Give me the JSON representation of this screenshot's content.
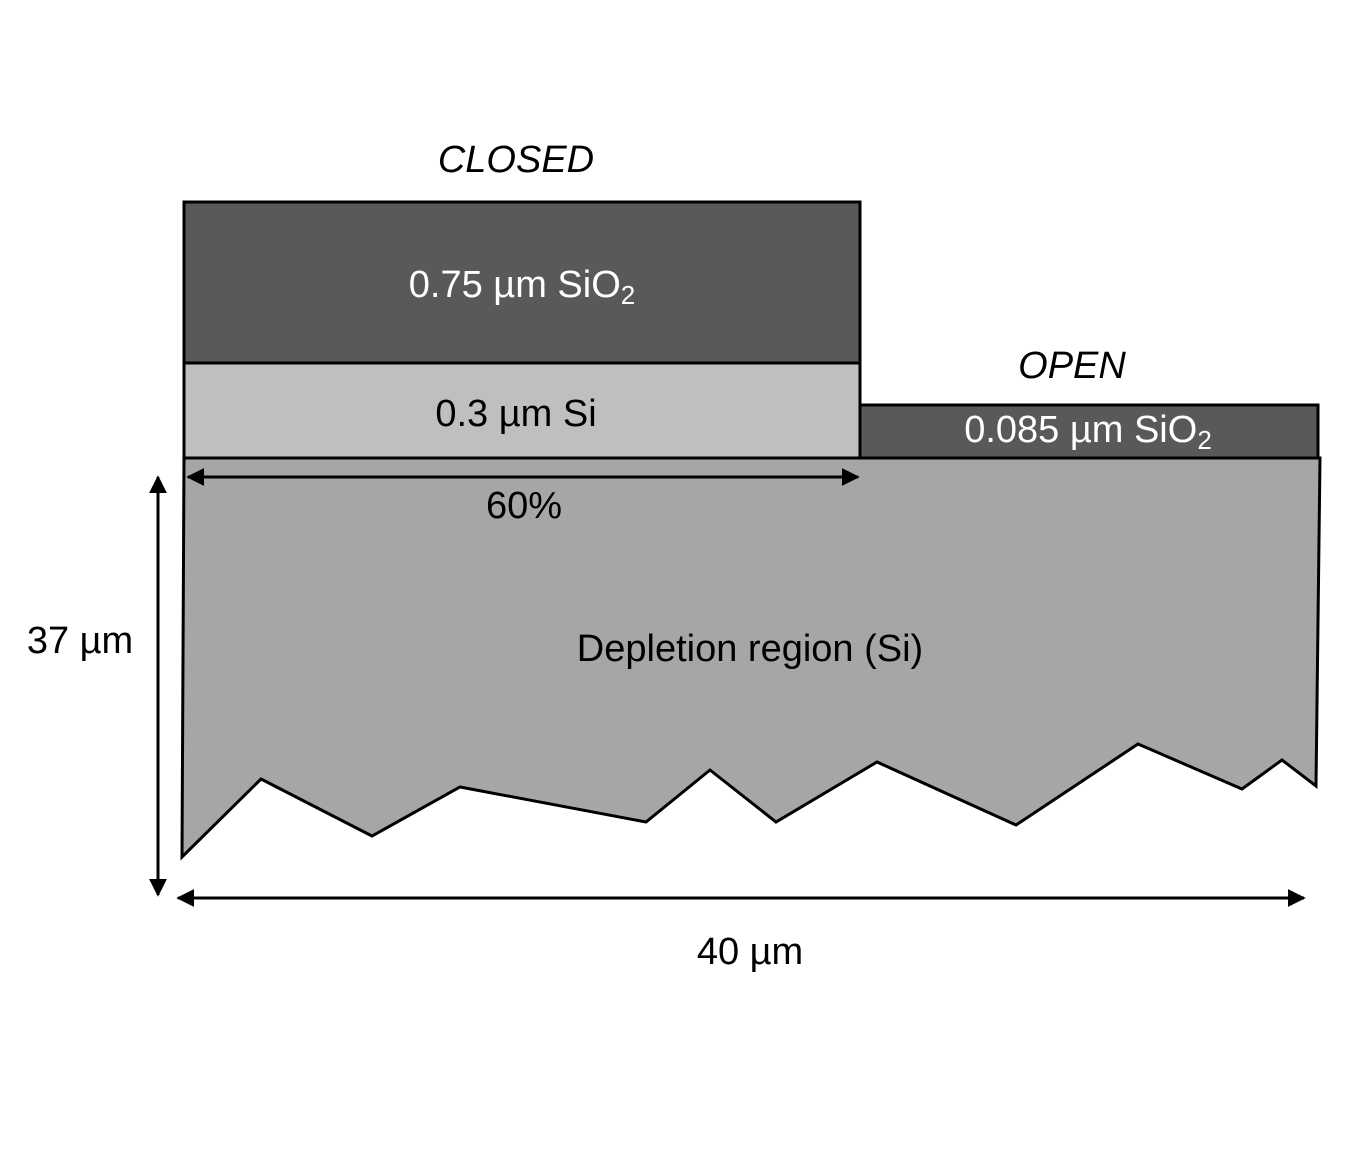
{
  "headers": {
    "closed": "CLOSED",
    "open": "OPEN"
  },
  "layers": {
    "closed_oxide": {
      "text": "0.75 µm SiO",
      "sub": "2"
    },
    "closed_si": {
      "text": "0.3 µm Si"
    },
    "open_oxide": {
      "text": "0.085 µm SiO",
      "sub": "2"
    },
    "depletion": {
      "text": "Depletion region (Si)"
    }
  },
  "dimensions": {
    "closed_width": "60%",
    "depth": "37 µm",
    "width": "40 µm"
  }
}
